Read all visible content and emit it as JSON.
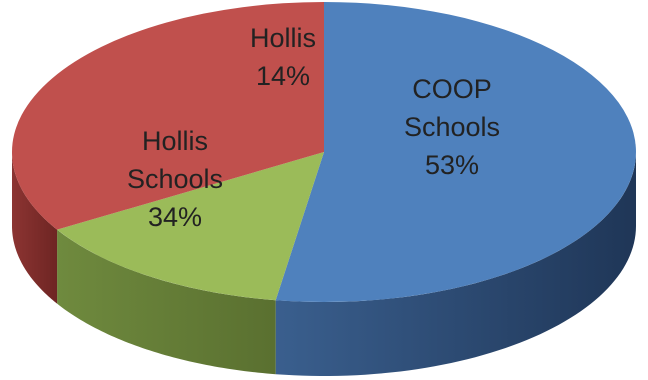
{
  "chart_data": {
    "type": "pie",
    "style": "3d",
    "title": "",
    "slices": [
      {
        "label_lines": [
          "COOP",
          "Schools"
        ],
        "pct_label": "53%",
        "value": 53,
        "color": "#4f81bd"
      },
      {
        "label_lines": [
          "Hollis"
        ],
        "pct_label": "14%",
        "value": 14,
        "color": "#9bbb59"
      },
      {
        "label_lines": [
          "Hollis",
          "Schools"
        ],
        "pct_label": "34%",
        "value": 34,
        "color": "#c0504d"
      }
    ]
  }
}
